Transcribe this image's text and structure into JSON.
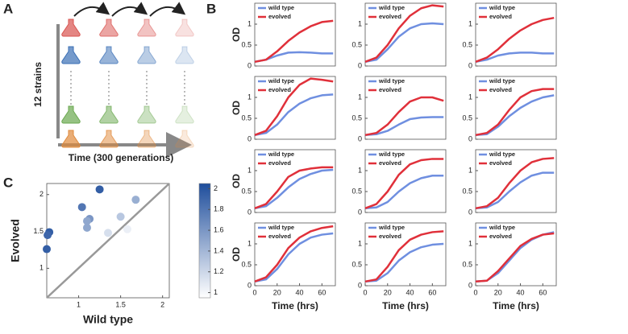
{
  "panel_labels": [
    "A",
    "B",
    "C"
  ],
  "diagram": {
    "ylabel": "12 strains",
    "xlabel": "Time (300 generations)"
  },
  "chart_data": [
    {
      "type": "line",
      "ylabel": "OD",
      "x": [
        0,
        10,
        20,
        30,
        40,
        50,
        60,
        70
      ],
      "ylim": [
        0,
        1.5
      ],
      "yticks": [
        0,
        0.5,
        1
      ],
      "xlim": [
        0,
        72
      ],
      "series": [
        {
          "name": "wild type",
          "color": "#6f8fe0",
          "values": [
            0.1,
            0.15,
            0.25,
            0.32,
            0.33,
            0.32,
            0.3,
            0.3
          ]
        },
        {
          "name": "evolved",
          "color": "#e0303a",
          "values": [
            0.1,
            0.15,
            0.35,
            0.6,
            0.8,
            0.95,
            1.05,
            1.08
          ]
        }
      ]
    },
    {
      "type": "line",
      "x": [
        0,
        10,
        20,
        30,
        40,
        50,
        60,
        70
      ],
      "ylim": [
        0,
        1.5
      ],
      "yticks": [
        0,
        0.5,
        1
      ],
      "xlim": [
        0,
        72
      ],
      "series": [
        {
          "name": "wild type",
          "color": "#6f8fe0",
          "values": [
            0.1,
            0.15,
            0.4,
            0.7,
            0.9,
            1.0,
            1.02,
            1.0
          ]
        },
        {
          "name": "evolved",
          "color": "#e0303a",
          "values": [
            0.1,
            0.2,
            0.5,
            0.9,
            1.2,
            1.38,
            1.45,
            1.42
          ]
        }
      ]
    },
    {
      "type": "line",
      "x": [
        0,
        10,
        20,
        30,
        40,
        50,
        60,
        70
      ],
      "ylim": [
        0,
        1.5
      ],
      "yticks": [
        0,
        0.5,
        1
      ],
      "xlim": [
        0,
        72
      ],
      "series": [
        {
          "name": "wild type",
          "color": "#6f8fe0",
          "values": [
            0.1,
            0.15,
            0.25,
            0.3,
            0.32,
            0.32,
            0.3,
            0.3
          ]
        },
        {
          "name": "evolved",
          "color": "#e0303a",
          "values": [
            0.1,
            0.2,
            0.4,
            0.65,
            0.85,
            1.0,
            1.1,
            1.15
          ]
        }
      ]
    },
    {
      "type": "line",
      "ylabel": "OD",
      "x": [
        0,
        10,
        20,
        30,
        40,
        50,
        60,
        70
      ],
      "ylim": [
        0,
        1.5
      ],
      "yticks": [
        0,
        0.5,
        1
      ],
      "xlim": [
        0,
        72
      ],
      "series": [
        {
          "name": "wild type",
          "color": "#6f8fe0",
          "values": [
            0.1,
            0.15,
            0.35,
            0.65,
            0.85,
            0.98,
            1.05,
            1.07
          ]
        },
        {
          "name": "evolved",
          "color": "#e0303a",
          "values": [
            0.1,
            0.2,
            0.55,
            1.0,
            1.3,
            1.45,
            1.42,
            1.38
          ]
        }
      ]
    },
    {
      "type": "line",
      "x": [
        0,
        10,
        20,
        30,
        40,
        50,
        60,
        70
      ],
      "ylim": [
        0,
        1.5
      ],
      "yticks": [
        0,
        0.5,
        1
      ],
      "xlim": [
        0,
        72
      ],
      "series": [
        {
          "name": "wild type",
          "color": "#6f8fe0",
          "values": [
            0.1,
            0.12,
            0.2,
            0.35,
            0.48,
            0.52,
            0.53,
            0.53
          ]
        },
        {
          "name": "evolved",
          "color": "#e0303a",
          "values": [
            0.1,
            0.15,
            0.35,
            0.65,
            0.9,
            1.0,
            1.0,
            0.92
          ]
        }
      ]
    },
    {
      "type": "line",
      "x": [
        0,
        10,
        20,
        30,
        40,
        50,
        60,
        70
      ],
      "ylim": [
        0,
        1.5
      ],
      "yticks": [
        0,
        0.5,
        1
      ],
      "xlim": [
        0,
        72
      ],
      "series": [
        {
          "name": "wild type",
          "color": "#6f8fe0",
          "values": [
            0.1,
            0.12,
            0.3,
            0.55,
            0.75,
            0.9,
            1.0,
            1.05
          ]
        },
        {
          "name": "evolved",
          "color": "#e0303a",
          "values": [
            0.1,
            0.15,
            0.35,
            0.7,
            1.0,
            1.15,
            1.2,
            1.2
          ]
        }
      ]
    },
    {
      "type": "line",
      "ylabel": "OD",
      "x": [
        0,
        10,
        20,
        30,
        40,
        50,
        60,
        70
      ],
      "ylim": [
        0,
        1.5
      ],
      "yticks": [
        0,
        0.5,
        1
      ],
      "xlim": [
        0,
        72
      ],
      "series": [
        {
          "name": "wild type",
          "color": "#6f8fe0",
          "values": [
            0.1,
            0.15,
            0.35,
            0.6,
            0.8,
            0.92,
            1.0,
            1.02
          ]
        },
        {
          "name": "evolved",
          "color": "#e0303a",
          "values": [
            0.1,
            0.2,
            0.5,
            0.85,
            1.0,
            1.05,
            1.08,
            1.08
          ]
        }
      ]
    },
    {
      "type": "line",
      "x": [
        0,
        10,
        20,
        30,
        40,
        50,
        60,
        70
      ],
      "ylim": [
        0,
        1.5
      ],
      "yticks": [
        0,
        0.5,
        1
      ],
      "xlim": [
        0,
        72
      ],
      "series": [
        {
          "name": "wild type",
          "color": "#6f8fe0",
          "values": [
            0.1,
            0.12,
            0.25,
            0.5,
            0.7,
            0.82,
            0.88,
            0.88
          ]
        },
        {
          "name": "evolved",
          "color": "#e0303a",
          "values": [
            0.1,
            0.2,
            0.5,
            0.9,
            1.15,
            1.25,
            1.28,
            1.28
          ]
        }
      ]
    },
    {
      "type": "line",
      "x": [
        0,
        10,
        20,
        30,
        40,
        50,
        60,
        70
      ],
      "ylim": [
        0,
        1.5
      ],
      "yticks": [
        0,
        0.5,
        1
      ],
      "xlim": [
        0,
        72
      ],
      "series": [
        {
          "name": "wild type",
          "color": "#6f8fe0",
          "values": [
            0.1,
            0.12,
            0.25,
            0.5,
            0.72,
            0.88,
            0.95,
            0.95
          ]
        },
        {
          "name": "evolved",
          "color": "#e0303a",
          "values": [
            0.1,
            0.15,
            0.35,
            0.7,
            1.0,
            1.2,
            1.28,
            1.3
          ]
        }
      ]
    },
    {
      "type": "line",
      "ylabel": "OD",
      "xlabel": "Time (hrs)",
      "x": [
        0,
        10,
        20,
        30,
        40,
        50,
        60,
        70
      ],
      "ylim": [
        0,
        1.5
      ],
      "yticks": [
        0,
        0.5,
        1
      ],
      "xlim": [
        0,
        72
      ],
      "xticks": [
        0,
        20,
        40,
        60
      ],
      "series": [
        {
          "name": "wild type",
          "color": "#6f8fe0",
          "values": [
            0.1,
            0.15,
            0.4,
            0.75,
            1.0,
            1.15,
            1.22,
            1.25
          ]
        },
        {
          "name": "evolved",
          "color": "#e0303a",
          "values": [
            0.1,
            0.2,
            0.5,
            0.9,
            1.15,
            1.3,
            1.38,
            1.42
          ]
        }
      ]
    },
    {
      "type": "line",
      "xlabel": "Time (hrs)",
      "x": [
        0,
        10,
        20,
        30,
        40,
        50,
        60,
        70
      ],
      "ylim": [
        0,
        1.5
      ],
      "yticks": [
        0,
        0.5,
        1
      ],
      "xlim": [
        0,
        72
      ],
      "xticks": [
        0,
        20,
        40,
        60
      ],
      "series": [
        {
          "name": "wild type",
          "color": "#6f8fe0",
          "values": [
            0.1,
            0.12,
            0.3,
            0.6,
            0.8,
            0.92,
            0.98,
            1.0
          ]
        },
        {
          "name": "evolved",
          "color": "#e0303a",
          "values": [
            0.1,
            0.15,
            0.45,
            0.85,
            1.1,
            1.22,
            1.28,
            1.3
          ]
        }
      ]
    },
    {
      "type": "line",
      "xlabel": "Time (hrs)",
      "x": [
        0,
        10,
        20,
        30,
        40,
        50,
        60,
        70
      ],
      "ylim": [
        0,
        1.5
      ],
      "yticks": [
        0,
        0.5,
        1
      ],
      "xlim": [
        0,
        72
      ],
      "xticks": [
        0,
        20,
        40,
        60
      ],
      "series": [
        {
          "name": "wild type",
          "color": "#6f8fe0",
          "values": [
            0.1,
            0.12,
            0.3,
            0.6,
            0.9,
            1.1,
            1.22,
            1.28
          ]
        },
        {
          "name": "evolved",
          "color": "#e0303a",
          "values": [
            0.1,
            0.12,
            0.35,
            0.65,
            0.95,
            1.12,
            1.22,
            1.25
          ]
        }
      ]
    },
    {
      "type": "scatter",
      "xlabel": "Wild type",
      "ylabel": "Evolved",
      "x": [
        0.65,
        0.63,
        0.62,
        1.25,
        1.04,
        1.13,
        1.1,
        1.35,
        1.5,
        1.68,
        1.58,
        1.1
      ],
      "values": [
        1.49,
        1.45,
        1.26,
        2.07,
        1.83,
        1.67,
        1.55,
        1.48,
        1.7,
        1.93,
        1.53,
        1.64
      ],
      "color_values": [
        1.95,
        1.9,
        1.95,
        1.95,
        1.8,
        1.6,
        1.5,
        1.15,
        1.3,
        1.45,
        1.05,
        1.5
      ],
      "xlim": [
        0.62,
        2.08
      ],
      "ylim": [
        0.6,
        2.15
      ],
      "xticks": [
        1,
        1.5,
        2
      ],
      "yticks": [
        1,
        1.5,
        2
      ],
      "colorbar": {
        "lim": [
          0.95,
          2.05
        ],
        "ticks": [
          1,
          1.2,
          1.4,
          1.6,
          1.8,
          2
        ],
        "colors": [
          "#ffffff",
          "#1f4e9c"
        ]
      }
    }
  ]
}
